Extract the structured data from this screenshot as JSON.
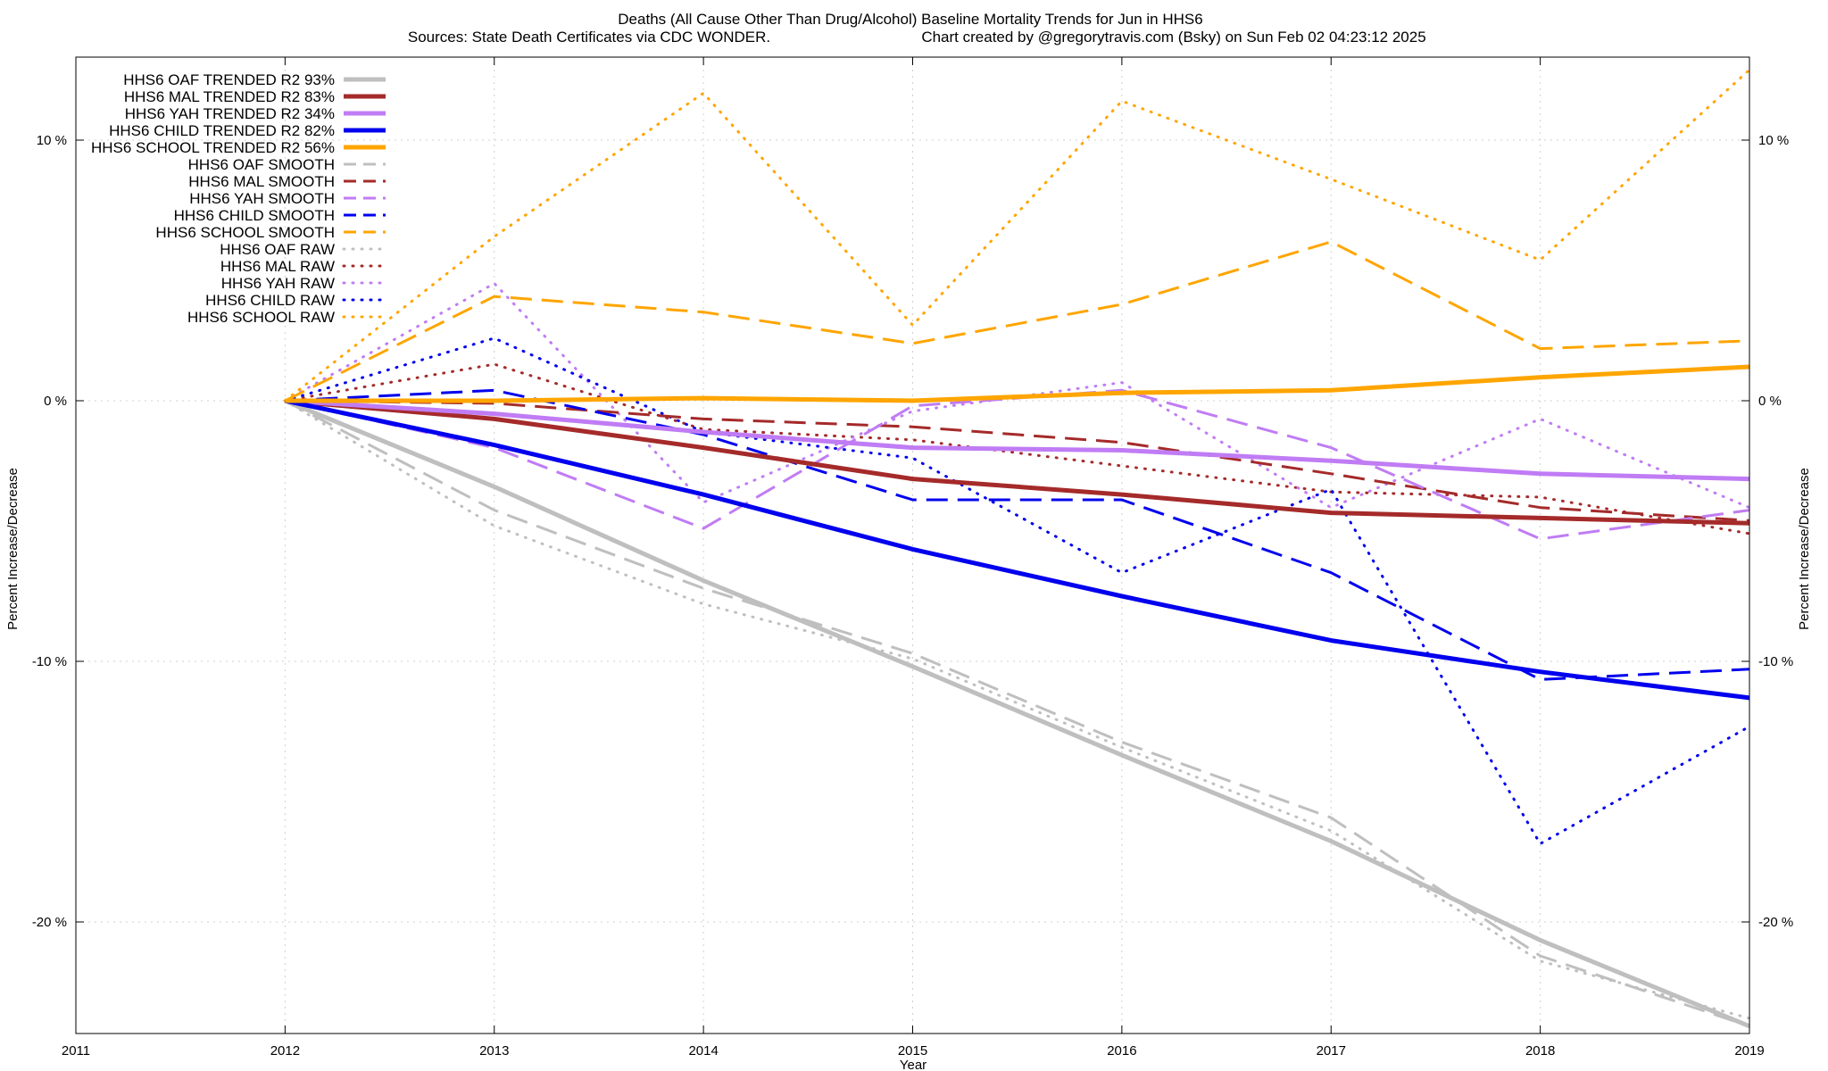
{
  "chart_data": {
    "type": "line",
    "title_line1": "Deaths (All Cause Other Than Drug/Alcohol)  Baseline Mortality Trends for Jun in HHS6",
    "title_line2_left": "Sources: State Death Certificates via CDC WONDER.",
    "title_line2_right": "Chart created by @gregorytravis.com (Bsky) on Sun Feb 02 04:23:12 2025",
    "xlabel": "Year",
    "ylabel_left": "Percent Increase/Decrease",
    "ylabel_right": "Percent Increase/Decrease",
    "xlim": [
      2011,
      2019
    ],
    "ylim": [
      -24.0,
      12.7
    ],
    "x_ticks": [
      2011,
      2012,
      2013,
      2014,
      2015,
      2016,
      2017,
      2018,
      2019
    ],
    "y_ticks": [
      {
        "value": 10,
        "label": "10 %"
      },
      {
        "value": 0,
        "label": "0 %"
      },
      {
        "value": -10,
        "label": "-10 %"
      },
      {
        "value": -20,
        "label": "-20 %"
      }
    ],
    "grid": true,
    "legend_position": "top-left",
    "x": [
      2012,
      2013,
      2014,
      2015,
      2016,
      2017,
      2018,
      2019
    ],
    "series": [
      {
        "name": "HHS6 OAF TRENDED R2  93%",
        "color": "#bfbfbf",
        "style": "solid",
        "width": 5,
        "values": [
          0,
          -3.3,
          -6.9,
          -10.2,
          -13.6,
          -16.9,
          -20.7,
          -24.0
        ]
      },
      {
        "name": "HHS6 MAL TRENDED R2  83%",
        "color": "#a52a2a",
        "style": "solid",
        "width": 5,
        "values": [
          0,
          -0.7,
          -1.8,
          -3.0,
          -3.6,
          -4.3,
          -4.5,
          -4.7
        ]
      },
      {
        "name": "HHS6 YAH TRENDED R2  34%",
        "color": "#c07cf4",
        "style": "solid",
        "width": 5,
        "values": [
          0,
          -0.5,
          -1.2,
          -1.8,
          -1.9,
          -2.3,
          -2.8,
          -3.0
        ]
      },
      {
        "name": "HHS6 CHILD TRENDED R2  82%",
        "color": "#0000ee",
        "style": "solid",
        "width": 5,
        "values": [
          0,
          -1.7,
          -3.6,
          -5.7,
          -7.5,
          -9.2,
          -10.4,
          -11.4
        ]
      },
      {
        "name": "HHS6 SCHOOL TRENDED R2  56%",
        "color": "#ffa500",
        "style": "solid",
        "width": 5,
        "values": [
          0,
          0.0,
          0.1,
          0.0,
          0.3,
          0.4,
          0.9,
          1.3
        ]
      },
      {
        "name": "HHS6 OAF SMOOTH",
        "color": "#bfbfbf",
        "style": "dashed",
        "width": 3,
        "values": [
          0,
          -4.2,
          -7.2,
          -9.7,
          -13.1,
          -16.0,
          -21.3,
          -24.0
        ]
      },
      {
        "name": "HHS6 MAL SMOOTH",
        "color": "#a52a2a",
        "style": "dashed",
        "width": 3,
        "values": [
          0,
          -0.1,
          -0.7,
          -1.0,
          -1.6,
          -2.8,
          -4.1,
          -4.6
        ]
      },
      {
        "name": "HHS6 YAH SMOOTH",
        "color": "#c07cf4",
        "style": "dashed",
        "width": 3,
        "values": [
          0,
          -1.8,
          -4.9,
          -0.2,
          0.4,
          -1.8,
          -5.3,
          -4.2
        ]
      },
      {
        "name": "HHS6 CHILD SMOOTH",
        "color": "#0000ee",
        "style": "dashed",
        "width": 3,
        "values": [
          0,
          0.4,
          -1.3,
          -3.8,
          -3.8,
          -6.6,
          -10.7,
          -10.3
        ]
      },
      {
        "name": "HHS6 SCHOOL SMOOTH",
        "color": "#ffa500",
        "style": "dashed",
        "width": 3,
        "values": [
          0,
          4.0,
          3.4,
          2.2,
          3.7,
          6.1,
          2.0,
          2.3
        ]
      },
      {
        "name": "HHS6 OAF RAW",
        "color": "#bfbfbf",
        "style": "dotted",
        "width": 3,
        "values": [
          0,
          -4.8,
          -7.8,
          -9.9,
          -13.3,
          -16.5,
          -21.5,
          -23.7
        ]
      },
      {
        "name": "HHS6 MAL RAW",
        "color": "#a52a2a",
        "style": "dotted",
        "width": 3,
        "values": [
          0,
          1.4,
          -1.1,
          -1.5,
          -2.5,
          -3.5,
          -3.7,
          -5.1
        ]
      },
      {
        "name": "HHS6 YAH RAW",
        "color": "#c07cf4",
        "style": "dotted",
        "width": 3,
        "values": [
          0,
          4.5,
          -3.9,
          -0.4,
          0.7,
          -4.1,
          -0.7,
          -4.1
        ]
      },
      {
        "name": "HHS6 CHILD RAW",
        "color": "#0000ee",
        "style": "dotted",
        "width": 3,
        "values": [
          0,
          2.4,
          -1.2,
          -2.2,
          -6.6,
          -3.4,
          -17.0,
          -12.5
        ]
      },
      {
        "name": "HHS6 SCHOOL RAW",
        "color": "#ffa500",
        "style": "dotted",
        "width": 3,
        "values": [
          0,
          6.3,
          11.8,
          2.9,
          11.5,
          8.5,
          5.4,
          12.7
        ]
      }
    ]
  }
}
